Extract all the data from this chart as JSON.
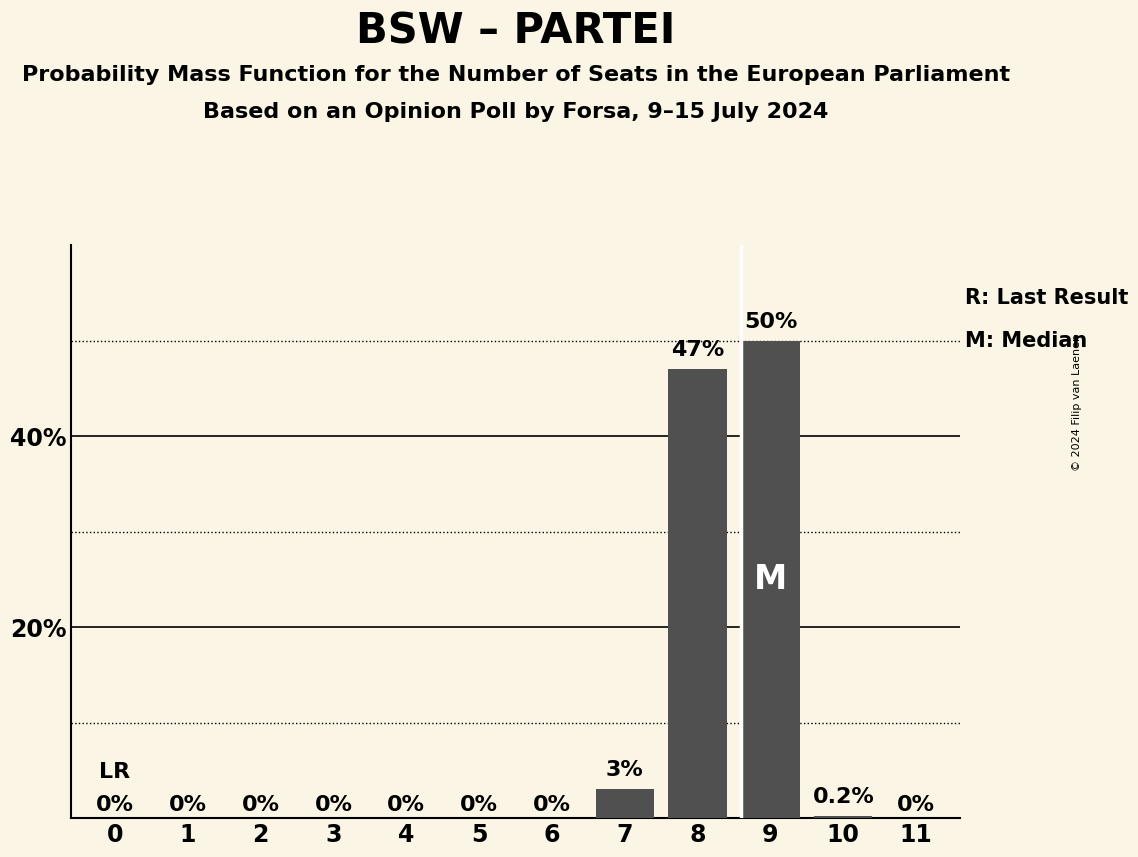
{
  "title": "BSW – PARTEI",
  "subtitle1": "Probability Mass Function for the Number of Seats in the European Parliament",
  "subtitle2": "Based on an Opinion Poll by Forsa, 9–15 July 2024",
  "copyright": "© 2024 Filip van Laenen",
  "x_values": [
    0,
    1,
    2,
    3,
    4,
    5,
    6,
    7,
    8,
    9,
    10,
    11
  ],
  "y_values": [
    0.0,
    0.0,
    0.0,
    0.0,
    0.0,
    0.0,
    0.0,
    0.03,
    0.47,
    0.5,
    0.002,
    0.0
  ],
  "bar_color": "#505050",
  "background_color": "#faf5e4",
  "bar_labels": [
    "0%",
    "0%",
    "0%",
    "0%",
    "0%",
    "0%",
    "0%",
    "3%",
    "47%",
    "50%",
    "0.2%",
    "0%"
  ],
  "last_result_seat": 0,
  "median_seat": 9,
  "legend_lr": "R: Last Result",
  "legend_m": "M: Median",
  "ylim": [
    0,
    0.6
  ],
  "yticks": [
    0.0,
    0.2,
    0.4
  ],
  "ytick_labels": [
    "",
    "20%",
    "40%"
  ],
  "dotted_lines": [
    0.1,
    0.3,
    0.5
  ],
  "solid_lines": [
    0.2,
    0.4
  ],
  "title_fontsize": 30,
  "subtitle_fontsize": 16,
  "bar_label_fontsize": 16,
  "axis_tick_fontsize": 17
}
